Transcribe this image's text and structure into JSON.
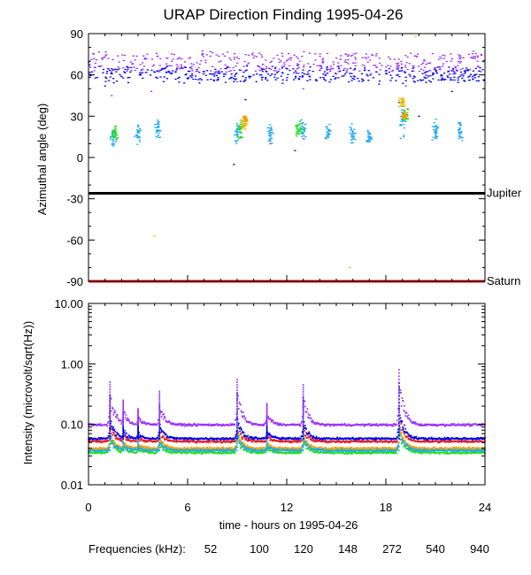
{
  "chart_data": [
    {
      "type": "scatter",
      "title": "URAP Direction Finding  1995-04-26",
      "xlabel": "",
      "ylabel": "Azimuthal angle (deg)",
      "xlim": [
        0,
        24
      ],
      "ylim": [
        -90,
        90
      ],
      "yticks": [
        90,
        60,
        30,
        0,
        -30,
        -60,
        -90
      ],
      "ytick_labels": [
        "90",
        "60",
        "30",
        "0",
        "-30",
        "-60",
        "-90"
      ],
      "reference_lines": [
        {
          "name": "Jupiter",
          "value": -26,
          "color": "#000000"
        },
        {
          "name": "Saturn",
          "value": -90,
          "color": "#e41a1c"
        }
      ],
      "series": [
        {
          "name": "940",
          "color": "#9b30ff",
          "band": [
            62,
            76
          ],
          "spread": 12,
          "sparse": [
            [
              1.4,
              45
            ],
            [
              9.0,
              55
            ],
            [
              13.0,
              50
            ],
            [
              19.2,
              52
            ],
            [
              3.8,
              48
            ],
            [
              20.5,
              58
            ]
          ]
        },
        {
          "name": "540",
          "color": "#0000e6",
          "band": [
            55,
            65
          ],
          "spread": 10,
          "sparse": [
            [
              1.0,
              52
            ],
            [
              9.5,
              42
            ],
            [
              18.8,
              40
            ],
            [
              12.5,
              5
            ],
            [
              20.0,
              30
            ],
            [
              8.8,
              -5
            ],
            [
              22.0,
              48
            ]
          ]
        },
        {
          "name": "272",
          "color": "#1ea9f0",
          "clusters": [
            [
              1.5,
              15,
              10
            ],
            [
              3.0,
              18,
              10
            ],
            [
              4.2,
              20,
              12
            ],
            [
              9.0,
              18,
              12
            ],
            [
              11.0,
              17,
              12
            ],
            [
              13.0,
              20,
              10
            ],
            [
              14.5,
              18,
              8
            ],
            [
              16.0,
              17,
              10
            ],
            [
              17.0,
              15,
              8
            ],
            [
              19.0,
              25,
              15
            ],
            [
              21.0,
              20,
              10
            ],
            [
              22.5,
              18,
              10
            ]
          ]
        },
        {
          "name": "148",
          "color": "#22dd22",
          "clusters": [
            [
              1.6,
              18,
              8
            ],
            [
              9.2,
              20,
              10
            ],
            [
              12.7,
              22,
              8
            ],
            [
              19.2,
              32,
              8
            ]
          ]
        },
        {
          "name": "120",
          "color": "#e6b800",
          "clusters": [
            [
              9.4,
              24,
              6
            ],
            [
              19.0,
              40,
              6
            ]
          ],
          "sparse": [
            [
              4.0,
              -57
            ],
            [
              15.8,
              -80
            ],
            [
              19.8,
              88
            ]
          ]
        },
        {
          "name": "100",
          "color": "#ff9900",
          "clusters": [
            [
              9.5,
              28,
              4
            ],
            [
              19.1,
              30,
              4
            ]
          ]
        },
        {
          "name": "52",
          "color": "#e41a1c",
          "sparse": [
            [
              11.0,
              10
            ]
          ]
        }
      ]
    },
    {
      "type": "line",
      "title": "",
      "xlabel": "time - hours on 1995-04-26",
      "ylabel": "Intensity (microvolt/sqrt(Hz))",
      "yscale": "log",
      "xlim": [
        0,
        24
      ],
      "ylim": [
        0.01,
        10
      ],
      "xticks": [
        0,
        6,
        12,
        18,
        24
      ],
      "xtick_labels": [
        "0",
        "6",
        "12",
        "18",
        "24"
      ],
      "yticks": [
        10,
        1,
        0.1,
        0.01
      ],
      "ytick_labels": [
        "10.00",
        "1.00",
        "0.10",
        "0.01"
      ],
      "bursts": [
        {
          "t": 1.3,
          "peak": 0.5
        },
        {
          "t": 2.1,
          "peak": 0.25
        },
        {
          "t": 3.0,
          "peak": 0.18
        },
        {
          "t": 4.3,
          "peak": 0.35
        },
        {
          "t": 9.0,
          "peak": 0.55
        },
        {
          "t": 10.8,
          "peak": 0.22
        },
        {
          "t": 13.0,
          "peak": 0.45
        },
        {
          "t": 18.8,
          "peak": 0.8
        }
      ],
      "series": [
        {
          "name": "52",
          "color": "#e41a1c",
          "level": 0.052
        },
        {
          "name": "100",
          "color": "#ff9900",
          "level": 0.04
        },
        {
          "name": "120",
          "color": "#e6b800",
          "level": 0.038
        },
        {
          "name": "148",
          "color": "#22dd22",
          "level": 0.034
        },
        {
          "name": "272",
          "color": "#1ea9f0",
          "level": 0.037
        },
        {
          "name": "540",
          "color": "#0000e6",
          "level": 0.058
        },
        {
          "name": "940",
          "color": "#9b30ff",
          "level": 0.098
        }
      ]
    }
  ],
  "legend": {
    "label": "Frequencies (kHz):",
    "items": [
      {
        "text": "52",
        "color": "#e41a1c"
      },
      {
        "text": "100",
        "color": "#ff9900"
      },
      {
        "text": "120",
        "color": "#e6b800"
      },
      {
        "text": "148",
        "color": "#22dd22"
      },
      {
        "text": "272",
        "color": "#1ea9f0"
      },
      {
        "text": "540",
        "color": "#0000e6"
      },
      {
        "text": "940",
        "color": "#9b30ff"
      }
    ]
  }
}
